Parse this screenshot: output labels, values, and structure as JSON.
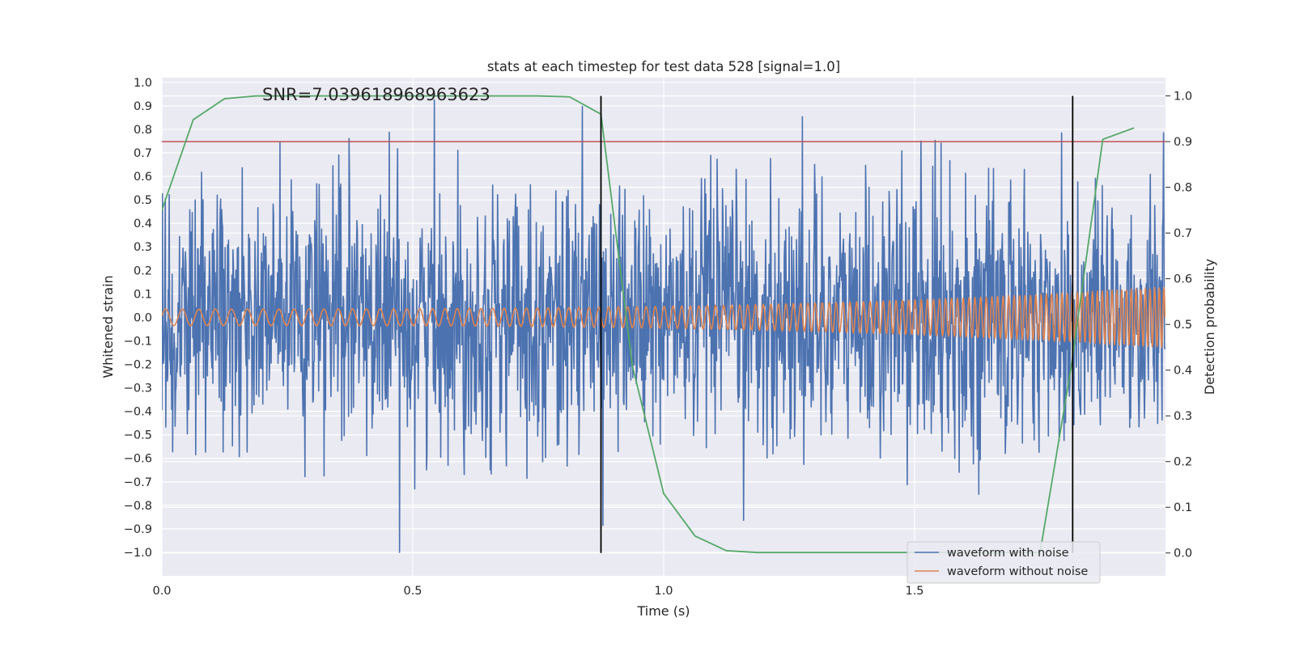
{
  "chart_data": {
    "type": "line",
    "title": "stats at each timestep for test data 528 [signal=1.0]",
    "xlabel": "Time (s)",
    "ylabel": "Whitened strain",
    "y2label": "Detection probability",
    "xlim": [
      0.0,
      2.0
    ],
    "ylim": [
      -1.1,
      1.02
    ],
    "y2lim": [
      -0.05,
      1.04
    ],
    "grid": true,
    "legend_position": "lower-right",
    "x_ticks": [
      "0.0",
      "0.5",
      "1.0",
      "1.5"
    ],
    "y_ticks": [
      "1.0",
      "0.9",
      "0.8",
      "0.7",
      "0.6",
      "0.5",
      "0.4",
      "0.3",
      "0.2",
      "0.1",
      "0.0",
      "−0.1",
      "−0.2",
      "−0.3",
      "−0.4",
      "−0.5",
      "−0.6",
      "−0.7",
      "−0.8",
      "−0.9",
      "−1.0"
    ],
    "y2_ticks": [
      "1.0",
      "0.9",
      "0.8",
      "0.7",
      "0.6",
      "0.5",
      "0.4",
      "0.3",
      "0.2",
      "0.1",
      "0.0"
    ],
    "annotation": "SNR=7.039618968963623",
    "series": [
      {
        "name": "waveform with noise",
        "color": "#4c72b0",
        "sample_rate_hz": 1024,
        "amplitude_std": 0.27,
        "extremes": {
          "max": 0.93,
          "min": -1.0
        }
      },
      {
        "name": "waveform without noise",
        "color": "#dd8452",
        "frequency_start_hz": 30,
        "frequency_end_hz": 110,
        "amplitude_start": 0.035,
        "amplitude_end": 0.13
      },
      {
        "color": "#55a868",
        "axis": "right",
        "x": [
          0.0,
          0.0625,
          0.125,
          0.1875,
          0.25,
          0.3125,
          0.375,
          0.4375,
          0.5,
          0.5625,
          0.625,
          0.6875,
          0.75,
          0.8125,
          0.875,
          0.9375,
          1.0,
          1.0625,
          1.125,
          1.1875,
          1.25,
          1.3125,
          1.375,
          1.4375,
          1.5,
          1.5625,
          1.625,
          1.6875,
          1.75,
          1.8125,
          1.875,
          1.9375
        ],
        "values": [
          0.75,
          0.948,
          0.994,
          1.0,
          1.0,
          1.0,
          1.0,
          1.0,
          1.0,
          1.0,
          1.0,
          1.0,
          1.0,
          0.998,
          0.96,
          0.41,
          0.13,
          0.037,
          0.005,
          0.001,
          0.001,
          0.001,
          0.001,
          0.001,
          0.001,
          0.001,
          0.001,
          0.001,
          0.001,
          0.41,
          0.905,
          0.93
        ]
      }
    ],
    "threshold": {
      "color": "#c44e52",
      "axis": "right",
      "value": 0.9
    },
    "vlines": {
      "color": "#000000",
      "x": [
        0.875,
        1.815
      ],
      "y2_range": [
        0.0,
        1.0
      ]
    },
    "legend": [
      {
        "label": "waveform with noise",
        "color": "#4c72b0"
      },
      {
        "label": "waveform without noise",
        "color": "#dd8452"
      }
    ]
  }
}
